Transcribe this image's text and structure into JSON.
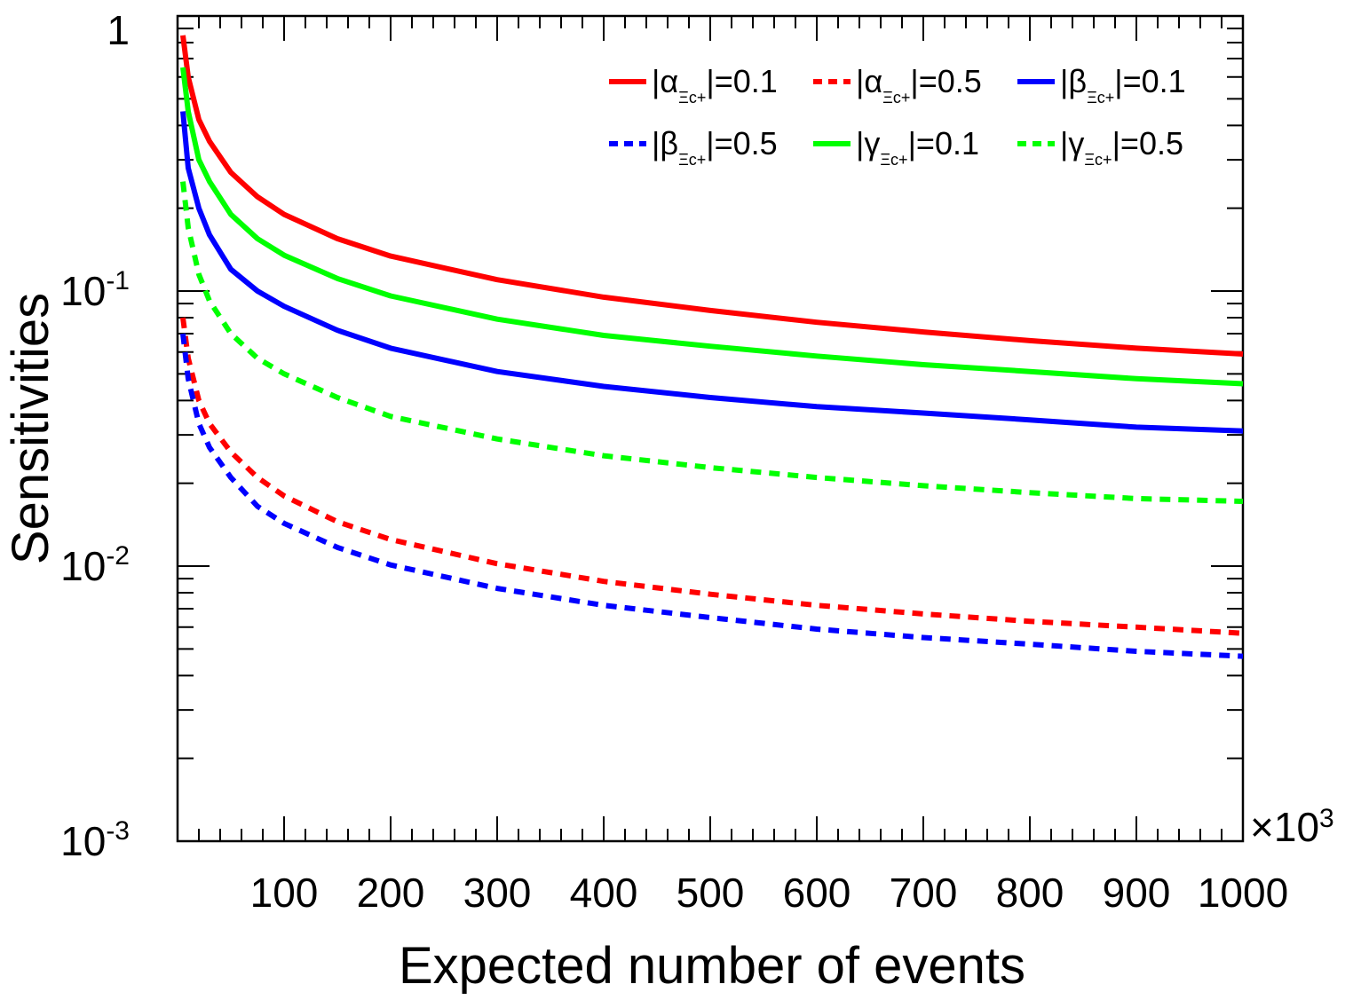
{
  "chart_data": {
    "type": "line",
    "xlabel": "Expected number of events",
    "ylabel": "Sensitivities",
    "x_multiplier_label": "×10",
    "x_multiplier_exp": "3",
    "xlim": [
      0,
      1000
    ],
    "ylim": [
      0.001,
      1
    ],
    "yscale": "log",
    "x_ticks": [
      "100",
      "200",
      "300",
      "400",
      "500",
      "600",
      "700",
      "800",
      "900",
      "1000"
    ],
    "y_ticks": [
      {
        "base": "1",
        "exp": ""
      },
      {
        "base": "10",
        "exp": "-1"
      },
      {
        "base": "10",
        "exp": "-2"
      },
      {
        "base": "10",
        "exp": "-3"
      }
    ],
    "legend_position": "top-right",
    "legend_subscript": "Ξc+",
    "x": [
      5,
      10,
      20,
      30,
      50,
      75,
      100,
      150,
      200,
      300,
      400,
      500,
      600,
      700,
      800,
      900,
      1000
    ],
    "series": [
      {
        "prefix": "|α",
        "suffix": "|=0.1",
        "color": "#ff0000",
        "style": "solid",
        "values": [
          0.85,
          0.6,
          0.42,
          0.35,
          0.27,
          0.22,
          0.19,
          0.155,
          0.134,
          0.11,
          0.095,
          0.085,
          0.077,
          0.071,
          0.066,
          0.062,
          0.059
        ]
      },
      {
        "prefix": "|α",
        "suffix": "|=0.5",
        "color": "#ff0000",
        "style": "dashed",
        "values": [
          0.08,
          0.057,
          0.04,
          0.033,
          0.026,
          0.021,
          0.018,
          0.0145,
          0.0125,
          0.0102,
          0.0088,
          0.0079,
          0.0072,
          0.0067,
          0.0063,
          0.006,
          0.0057
        ]
      },
      {
        "prefix": "|β",
        "suffix": "|=0.1",
        "color": "#0000ff",
        "style": "solid",
        "values": [
          0.45,
          0.28,
          0.2,
          0.16,
          0.12,
          0.1,
          0.088,
          0.072,
          0.062,
          0.051,
          0.045,
          0.041,
          0.038,
          0.036,
          0.034,
          0.032,
          0.031
        ]
      },
      {
        "prefix": "|β",
        "suffix": "|=0.5",
        "color": "#0000ff",
        "style": "dashed",
        "values": [
          0.07,
          0.048,
          0.033,
          0.027,
          0.021,
          0.0165,
          0.0143,
          0.0117,
          0.0101,
          0.0083,
          0.0072,
          0.0065,
          0.0059,
          0.0055,
          0.0052,
          0.0049,
          0.0047
        ]
      },
      {
        "prefix": "|γ",
        "suffix": "|=0.1",
        "color": "#00ff00",
        "style": "solid",
        "values": [
          0.65,
          0.45,
          0.3,
          0.25,
          0.19,
          0.155,
          0.135,
          0.111,
          0.096,
          0.079,
          0.069,
          0.063,
          0.058,
          0.054,
          0.051,
          0.048,
          0.046
        ]
      },
      {
        "prefix": "|γ",
        "suffix": "|=0.5",
        "color": "#00ff00",
        "style": "dashed",
        "values": [
          0.25,
          0.17,
          0.115,
          0.092,
          0.07,
          0.057,
          0.05,
          0.041,
          0.035,
          0.029,
          0.0252,
          0.0228,
          0.021,
          0.0196,
          0.0185,
          0.0176,
          0.0172
        ]
      }
    ]
  }
}
